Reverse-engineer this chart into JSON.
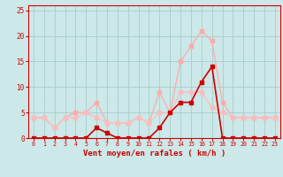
{
  "x": [
    0,
    1,
    2,
    3,
    4,
    5,
    6,
    7,
    8,
    9,
    10,
    11,
    12,
    13,
    14,
    15,
    16,
    17,
    18,
    19,
    20,
    21,
    22,
    23
  ],
  "line_rafales": [
    4,
    4,
    2,
    4,
    5,
    5,
    7,
    3,
    3,
    3,
    4,
    3,
    9,
    5,
    15,
    18,
    21,
    19,
    7,
    4,
    4,
    4,
    4,
    4
  ],
  "line_moyen": [
    4,
    4,
    2,
    4,
    4,
    5,
    4,
    3,
    3,
    3,
    4,
    3,
    5,
    5,
    9,
    9,
    9,
    6,
    5,
    4,
    4,
    4,
    4,
    4
  ],
  "line_wind": [
    0,
    0,
    0,
    0,
    0,
    0,
    2,
    1,
    0,
    0,
    0,
    0,
    2,
    5,
    7,
    7,
    11,
    14,
    0,
    0,
    0,
    0,
    0,
    0
  ],
  "bg_color": "#cce8e8",
  "grid_color": "#aacccc",
  "color_rafales": "#ffaaaa",
  "color_moyen": "#ffbbbb",
  "color_wind": "#cc0000",
  "xlabel": "Vent moyen/en rafales ( km/h )",
  "ylim": [
    0,
    26
  ],
  "xlim": [
    -0.5,
    23.5
  ],
  "yticks": [
    0,
    5,
    10,
    15,
    20,
    25
  ],
  "xticks": [
    0,
    1,
    2,
    3,
    4,
    5,
    6,
    7,
    8,
    9,
    10,
    11,
    12,
    13,
    14,
    15,
    16,
    17,
    18,
    19,
    20,
    21,
    22,
    23
  ]
}
